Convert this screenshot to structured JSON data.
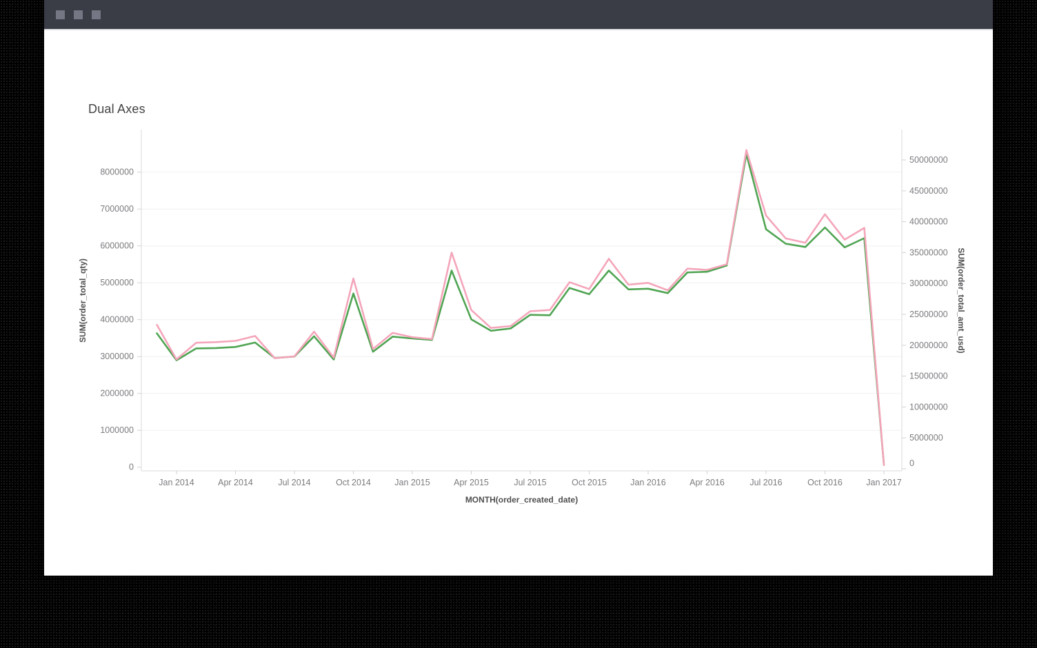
{
  "window": {
    "titlebar_controls": [
      "window-control",
      "window-control",
      "window-control"
    ]
  },
  "chart": {
    "title": "Dual Axes"
  },
  "colors": {
    "qty_line": "#4FA452",
    "amt_line": "#F4A5BA",
    "grid": "#F1F1F2",
    "axis_line": "#D9D9DD",
    "tick_mark": "#D2D2D7",
    "tick_label": "#7B7B80",
    "axis_title": "#4F4F52",
    "titlebar_bg": "#3A3C46",
    "titlebar_control": "#757784"
  },
  "chart_data": {
    "type": "line",
    "title": "Dual Axes",
    "xlabel": "MONTH(order_created_date)",
    "x": [
      "Dec 2013",
      "Jan 2014",
      "Feb 2014",
      "Mar 2014",
      "Apr 2014",
      "May 2014",
      "Jun 2014",
      "Jul 2014",
      "Aug 2014",
      "Sep 2014",
      "Oct 2014",
      "Nov 2014",
      "Dec 2014",
      "Jan 2015",
      "Feb 2015",
      "Mar 2015",
      "Apr 2015",
      "May 2015",
      "Jun 2015",
      "Jul 2015",
      "Aug 2015",
      "Sep 2015",
      "Oct 2015",
      "Nov 2015",
      "Dec 2015",
      "Jan 2016",
      "Feb 2016",
      "Mar 2016",
      "Apr 2016",
      "May 2016",
      "Jun 2016",
      "Jul 2016",
      "Aug 2016",
      "Sep 2016",
      "Oct 2016",
      "Nov 2016",
      "Dec 2016",
      "Jan 2017"
    ],
    "x_tick_labels": [
      "Jan 2014",
      "Apr 2014",
      "Jul 2014",
      "Oct 2014",
      "Jan 2015",
      "Apr 2015",
      "Jul 2015",
      "Oct 2015",
      "Jan 2016",
      "Apr 2016",
      "Jul 2016",
      "Oct 2016",
      "Jan 2017"
    ],
    "series": [
      {
        "name": "SUM(order_total_qty)",
        "axis": "left",
        "color": "#4FA452",
        "values": [
          3630000,
          2900000,
          3220000,
          3230000,
          3260000,
          3380000,
          2960000,
          3000000,
          3550000,
          2920000,
          4710000,
          3130000,
          3540000,
          3490000,
          3450000,
          5330000,
          4010000,
          3700000,
          3760000,
          4130000,
          4120000,
          4860000,
          4690000,
          5330000,
          4820000,
          4840000,
          4720000,
          5280000,
          5300000,
          5470000,
          8490000,
          6450000,
          6060000,
          5970000,
          6500000,
          5960000,
          6210000,
          60000
        ]
      },
      {
        "name": "SUM(order_total_amt_usd)",
        "axis": "right",
        "color": "#F4A5BA",
        "values": [
          23300000,
          17700000,
          20400000,
          20500000,
          20700000,
          21500000,
          17900000,
          18200000,
          22200000,
          18000000,
          30800000,
          19400000,
          22000000,
          21300000,
          21000000,
          35000000,
          25700000,
          22800000,
          23100000,
          25500000,
          25700000,
          30200000,
          29100000,
          34000000,
          29800000,
          30100000,
          28900000,
          32400000,
          32200000,
          33100000,
          51600000,
          41000000,
          37300000,
          36600000,
          41200000,
          37100000,
          39000000,
          600000
        ]
      }
    ],
    "left_axis": {
      "title": "SUM(order_total_qty)",
      "ticks": [
        0,
        1000000,
        2000000,
        3000000,
        4000000,
        5000000,
        6000000,
        7000000,
        8000000
      ],
      "range": [
        0,
        9250000
      ]
    },
    "right_axis": {
      "title": "SUM(order_total_amt_usd)",
      "ticks": [
        0,
        5000000,
        10000000,
        15000000,
        20000000,
        25000000,
        30000000,
        35000000,
        40000000,
        45000000,
        50000000
      ],
      "range": [
        0,
        55000000
      ]
    },
    "grid": "horizontal",
    "legend_position": "none"
  }
}
